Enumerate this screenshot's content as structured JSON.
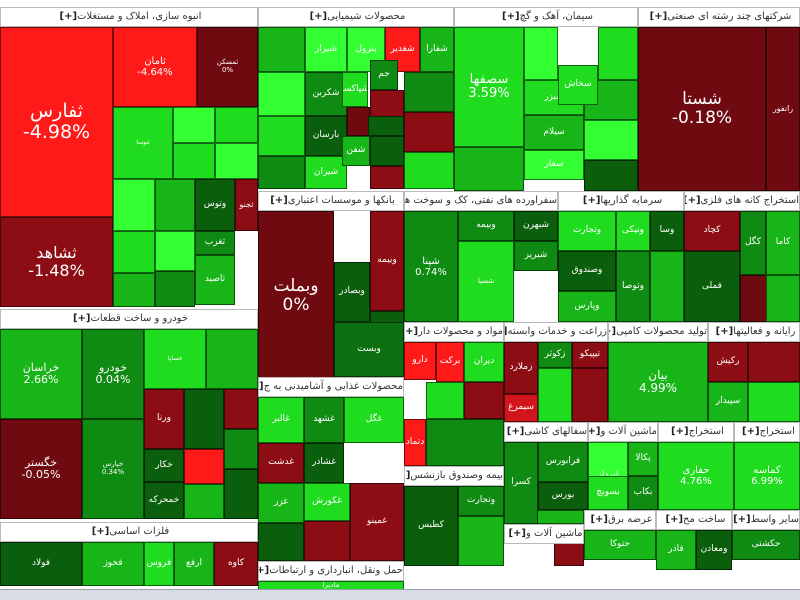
{
  "sectors": [
    {
      "name": "انبوه سازی، املاک و مستغلات",
      "plus": "[+]"
    },
    {
      "name": "محصولات شیمیایی",
      "plus": "[+]"
    },
    {
      "name": "سیمان، آهک و گچ",
      "plus": "[+]"
    },
    {
      "name": "شرکتهای چند رشته ای صنعتی",
      "plus": "[+]"
    },
    {
      "name": "خودرو و ساخت قطعات",
      "plus": "[+]"
    },
    {
      "name": "بانکها و موسسات اعتباری",
      "plus": "[+]"
    },
    {
      "name": "سفراورده های نفتی، کک و سوخت هسته",
      "plus": "[+]"
    },
    {
      "name": "سرمایه گذاریها",
      "plus": "[+]"
    },
    {
      "name": "استخراج کانه های فلزی",
      "plus": "[+]"
    },
    {
      "name": "مواد و محصولات دار",
      "plus": "[+]"
    },
    {
      "name": "زراعت و خدمات وابسته",
      "plus": "[+]"
    },
    {
      "name": "تولید محصولات کامپی",
      "plus": "[+]"
    },
    {
      "name": "رایانه و فعالیتها",
      "plus": "[+]"
    },
    {
      "name": "محصولات غذایی و آشامیدنی به ج",
      "plus": "[+]"
    },
    {
      "name": "سفالهای کاشی",
      "plus": "[+]"
    },
    {
      "name": "ماشین آلات و",
      "plus": "[+]"
    },
    {
      "name": "استخراج",
      "plus": "[+]"
    },
    {
      "name": "استخراج",
      "plus": "[+]"
    },
    {
      "name": "بیمه وصندوق بازنشس",
      "plus": "[+]"
    },
    {
      "name": "ماشین آلات و",
      "plus": "[+]"
    },
    {
      "name": "عرضه برق",
      "plus": "[+]"
    },
    {
      "name": "ساخت مح",
      "plus": "[+]"
    },
    {
      "name": "سایر واسط",
      "plus": "[+]"
    },
    {
      "name": "فلزات اساسی",
      "plus": "[+]"
    },
    {
      "name": "حمل ونقل، انبارداری و ارتباطات",
      "plus": "[+]"
    }
  ],
  "stocks": [
    {
      "name": "ثفارس",
      "change": "-4.98%"
    },
    {
      "name": "ثشاهد",
      "change": "-1.48%"
    },
    {
      "name": "ثامان",
      "change": "-4.64%"
    },
    {
      "name": "ثمسکن",
      "change": "0%"
    },
    {
      "name": "ثنوسا",
      "change": ""
    },
    {
      "name": "وتوس",
      "change": ""
    },
    {
      "name": "ثغرب",
      "change": ""
    },
    {
      "name": "ثاصید",
      "change": ""
    },
    {
      "name": "ثجنو",
      "change": ""
    },
    {
      "name": "شیراز",
      "change": ""
    },
    {
      "name": "پترول",
      "change": ""
    },
    {
      "name": "شغدیر",
      "change": ""
    },
    {
      "name": "شفارا",
      "change": ""
    },
    {
      "name": "شکربن",
      "change": ""
    },
    {
      "name": "بارسان",
      "change": ""
    },
    {
      "name": "شیران",
      "change": ""
    },
    {
      "name": "شفن",
      "change": ""
    },
    {
      "name": "جم",
      "change": ""
    },
    {
      "name": "شپاکسا",
      "change": ""
    },
    {
      "name": "سصفها",
      "change": "3.59%"
    },
    {
      "name": "سبزر",
      "change": ""
    },
    {
      "name": "سیلام",
      "change": ""
    },
    {
      "name": "سفار",
      "change": ""
    },
    {
      "name": "سخاش",
      "change": ""
    },
    {
      "name": "شستا",
      "change": "-0.18%"
    },
    {
      "name": "رانفور",
      "change": ""
    },
    {
      "name": "خراسان",
      "change": "2.66%"
    },
    {
      "name": "خودرو",
      "change": "0.04%"
    },
    {
      "name": "خگستر",
      "change": "-0.05%"
    },
    {
      "name": "خپارس",
      "change": "0.34%"
    },
    {
      "name": "خساپا",
      "change": ""
    },
    {
      "name": "ورنا",
      "change": ""
    },
    {
      "name": "خکار",
      "change": ""
    },
    {
      "name": "خمحرکه",
      "change": ""
    },
    {
      "name": "وبملت",
      "change": "0%"
    },
    {
      "name": "وبصادر",
      "change": ""
    },
    {
      "name": "وبص",
      "change": ""
    },
    {
      "name": "وبیمه",
      "change": ""
    },
    {
      "name": "وبست",
      "change": ""
    },
    {
      "name": "شپنا",
      "change": "0.74%"
    },
    {
      "name": "شبهرن",
      "change": ""
    },
    {
      "name": "شبریز",
      "change": ""
    },
    {
      "name": "شسپا",
      "change": ""
    },
    {
      "name": "وبیمه",
      "change": ""
    },
    {
      "name": "وتجارت",
      "change": ""
    },
    {
      "name": "وصندوق",
      "change": ""
    },
    {
      "name": "وپارس",
      "change": ""
    },
    {
      "name": "ونیکی",
      "change": ""
    },
    {
      "name": "وسا",
      "change": ""
    },
    {
      "name": "وتوصا",
      "change": ""
    },
    {
      "name": "کاما",
      "change": ""
    },
    {
      "name": "کگل",
      "change": ""
    },
    {
      "name": "کچاد",
      "change": ""
    },
    {
      "name": "فملی",
      "change": ""
    },
    {
      "name": "زملارد",
      "change": ""
    },
    {
      "name": "سیمرغ",
      "change": ""
    },
    {
      "name": "زکوثر",
      "change": ""
    },
    {
      "name": "دتماد",
      "change": ""
    },
    {
      "name": "دارو",
      "change": ""
    },
    {
      "name": "برکت",
      "change": ""
    },
    {
      "name": "دیران",
      "change": ""
    },
    {
      "name": "تیپیکو",
      "change": ""
    },
    {
      "name": "بیان",
      "change": "4.99%"
    },
    {
      "name": "رکیش",
      "change": ""
    },
    {
      "name": "سپیدار",
      "change": ""
    },
    {
      "name": "غالبر",
      "change": ""
    },
    {
      "name": "غشهد",
      "change": ""
    },
    {
      "name": "غگل",
      "change": ""
    },
    {
      "name": "غدشت",
      "change": ""
    },
    {
      "name": "غزر",
      "change": ""
    },
    {
      "name": "غشاذر",
      "change": ""
    },
    {
      "name": "غکورش",
      "change": ""
    },
    {
      "name": "غمینو",
      "change": ""
    },
    {
      "name": "کسرا",
      "change": ""
    },
    {
      "name": "فرابورس",
      "change": ""
    },
    {
      "name": "بورس",
      "change": ""
    },
    {
      "name": "کالا",
      "change": ""
    },
    {
      "name": "اپرداز",
      "change": ""
    },
    {
      "name": "پکالا",
      "change": ""
    },
    {
      "name": "بسویچ",
      "change": ""
    },
    {
      "name": "بکاب",
      "change": ""
    },
    {
      "name": "حفاری",
      "change": "4.76%"
    },
    {
      "name": "کماسه",
      "change": "6.99%"
    },
    {
      "name": "کروی",
      "change": ""
    },
    {
      "name": "ومعادن",
      "change": ""
    },
    {
      "name": "فاذر",
      "change": ""
    },
    {
      "name": "فولاد",
      "change": ""
    },
    {
      "name": "فخوز",
      "change": ""
    },
    {
      "name": "فروس",
      "change": ""
    },
    {
      "name": "ارفع",
      "change": ""
    },
    {
      "name": "کاوه",
      "change": ""
    },
    {
      "name": "کطبس",
      "change": ""
    },
    {
      "name": "وتجارت",
      "change": ""
    },
    {
      "name": "حتوکا",
      "change": ""
    },
    {
      "name": "حکشتی",
      "change": ""
    },
    {
      "name": "مادیرا",
      "change": ""
    }
  ]
}
